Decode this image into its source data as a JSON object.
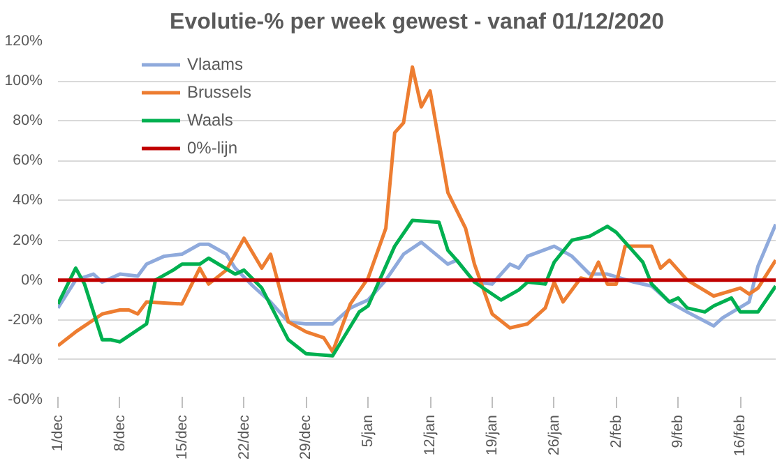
{
  "chart_data": {
    "type": "line",
    "title": "Evolutie-% per week gewest - vanaf 01/12/2020",
    "xlim": [
      "2020-12-01",
      "2021-02-20"
    ],
    "xticks": [
      {
        "value": "2020-12-01",
        "label": "1/dec"
      },
      {
        "value": "2020-12-08",
        "label": "8/dec"
      },
      {
        "value": "2020-12-15",
        "label": "15/dec"
      },
      {
        "value": "2020-12-22",
        "label": "22/dec"
      },
      {
        "value": "2020-12-29",
        "label": "29/dec"
      },
      {
        "value": "2021-01-05",
        "label": "5/jan"
      },
      {
        "value": "2021-01-12",
        "label": "12/jan"
      },
      {
        "value": "2021-01-19",
        "label": "19/jan"
      },
      {
        "value": "2021-01-26",
        "label": "26/jan"
      },
      {
        "value": "2021-02-02",
        "label": "2/feb"
      },
      {
        "value": "2021-02-09",
        "label": "9/feb"
      },
      {
        "value": "2021-02-16",
        "label": "16/feb"
      }
    ],
    "ylim": [
      -60,
      120
    ],
    "yticks": [
      {
        "value": -60,
        "label": "-60%"
      },
      {
        "value": -40,
        "label": "-40%"
      },
      {
        "value": -20,
        "label": "-20%"
      },
      {
        "value": 0,
        "label": "0%"
      },
      {
        "value": 20,
        "label": "20%"
      },
      {
        "value": 40,
        "label": "40%"
      },
      {
        "value": 60,
        "label": "60%"
      },
      {
        "value": 80,
        "label": "80%"
      },
      {
        "value": 100,
        "label": "100%"
      },
      {
        "value": 120,
        "label": "120%"
      }
    ],
    "grid": "y",
    "legend": "top left",
    "marker": "none",
    "line_style": "solid",
    "series": [
      {
        "name": "Vlaams",
        "color": "#8faadc",
        "x": [
          "2020-12-01",
          "2020-12-03",
          "2020-12-05",
          "2020-12-06",
          "2020-12-08",
          "2020-12-10",
          "2020-12-11",
          "2020-12-13",
          "2020-12-15",
          "2020-12-17",
          "2020-12-18",
          "2020-12-20",
          "2020-12-21",
          "2020-12-23",
          "2020-12-25",
          "2020-12-27",
          "2020-12-29",
          "2021-01-01",
          "2021-01-03",
          "2021-01-05",
          "2021-01-07",
          "2021-01-09",
          "2021-01-11",
          "2021-01-14",
          "2021-01-15",
          "2021-01-17",
          "2021-01-19",
          "2021-01-21",
          "2021-01-22",
          "2021-01-23",
          "2021-01-26",
          "2021-01-28",
          "2021-01-30",
          "2021-02-01",
          "2021-02-04",
          "2021-02-06",
          "2021-02-08",
          "2021-02-10",
          "2021-02-13",
          "2021-02-14",
          "2021-02-17",
          "2021-02-18",
          "2021-02-20"
        ],
        "values": [
          -14,
          0,
          3,
          -1,
          3,
          2,
          8,
          12,
          13,
          18,
          18,
          13,
          6,
          -3,
          -11,
          -21,
          -22,
          -22,
          -14,
          -10,
          0,
          13,
          19,
          8,
          10,
          -1,
          -2,
          8,
          6,
          12,
          17,
          12,
          3,
          3,
          -1,
          -3,
          -11,
          -16,
          -23,
          -19,
          -11,
          7,
          28
        ]
      },
      {
        "name": "Brussels",
        "color": "#ed7d31",
        "x": [
          "2020-12-01",
          "2020-12-03",
          "2020-12-04",
          "2020-12-06",
          "2020-12-08",
          "2020-12-09",
          "2020-12-10",
          "2020-12-11",
          "2020-12-15",
          "2020-12-17",
          "2020-12-18",
          "2020-12-20",
          "2020-12-22",
          "2020-12-24",
          "2020-12-25",
          "2020-12-27",
          "2020-12-29",
          "2020-12-31",
          "2021-01-01",
          "2021-01-03",
          "2021-01-05",
          "2021-01-07",
          "2021-01-08",
          "2021-01-09",
          "2021-01-10",
          "2021-01-11",
          "2021-01-12",
          "2021-01-14",
          "2021-01-16",
          "2021-01-17",
          "2021-01-19",
          "2021-01-21",
          "2021-01-23",
          "2021-01-25",
          "2021-01-26",
          "2021-01-27",
          "2021-01-29",
          "2021-01-30",
          "2021-01-31",
          "2021-02-01",
          "2021-02-02",
          "2021-02-03",
          "2021-02-06",
          "2021-02-07",
          "2021-02-08",
          "2021-02-10",
          "2021-02-13",
          "2021-02-16",
          "2021-02-17",
          "2021-02-18",
          "2021-02-20"
        ],
        "values": [
          -33,
          -26,
          -23,
          -17,
          -15,
          -15,
          -17,
          -11,
          -12,
          6,
          -2,
          5,
          21,
          6,
          13,
          -21,
          -26,
          -29,
          -36,
          -12,
          1,
          26,
          74,
          79,
          107,
          87,
          95,
          44,
          26,
          8,
          -17,
          -24,
          -22,
          -14,
          -1,
          -11,
          1,
          0,
          9,
          -2,
          -2,
          17,
          17,
          6,
          10,
          0,
          -8,
          -4,
          -7,
          -4,
          10
        ]
      },
      {
        "name": "Waals",
        "color": "#00b050",
        "x": [
          "2020-12-01",
          "2020-12-03",
          "2020-12-04",
          "2020-12-06",
          "2020-12-07",
          "2020-12-08",
          "2020-12-11",
          "2020-12-12",
          "2020-12-14",
          "2020-12-15",
          "2020-12-17",
          "2020-12-18",
          "2020-12-21",
          "2020-12-22",
          "2020-12-24",
          "2020-12-27",
          "2020-12-29",
          "2021-01-01",
          "2021-01-04",
          "2021-01-05",
          "2021-01-08",
          "2021-01-10",
          "2021-01-13",
          "2021-01-14",
          "2021-01-15",
          "2021-01-17",
          "2021-01-20",
          "2021-01-22",
          "2021-01-23",
          "2021-01-25",
          "2021-01-26",
          "2021-01-28",
          "2021-01-30",
          "2021-02-01",
          "2021-02-02",
          "2021-02-04",
          "2021-02-05",
          "2021-02-06",
          "2021-02-08",
          "2021-02-09",
          "2021-02-10",
          "2021-02-12",
          "2021-02-13",
          "2021-02-15",
          "2021-02-16",
          "2021-02-18",
          "2021-02-20"
        ],
        "values": [
          -12,
          6,
          -2,
          -30,
          -30,
          -31,
          -22,
          0,
          5,
          8,
          8,
          11,
          3,
          5,
          -4,
          -30,
          -37,
          -38,
          -16,
          -13,
          17,
          30,
          29,
          15,
          10,
          -1,
          -10,
          -5,
          -1,
          -2,
          9,
          20,
          22,
          27,
          24,
          14,
          9,
          -2,
          -11,
          -9,
          -14,
          -16,
          -13,
          -9,
          -16,
          -16,
          -3
        ]
      },
      {
        "name": "0%-lijn",
        "color": "#c00000",
        "x": [
          "2020-12-01",
          "2021-02-20"
        ],
        "values": [
          0,
          0
        ]
      }
    ]
  }
}
